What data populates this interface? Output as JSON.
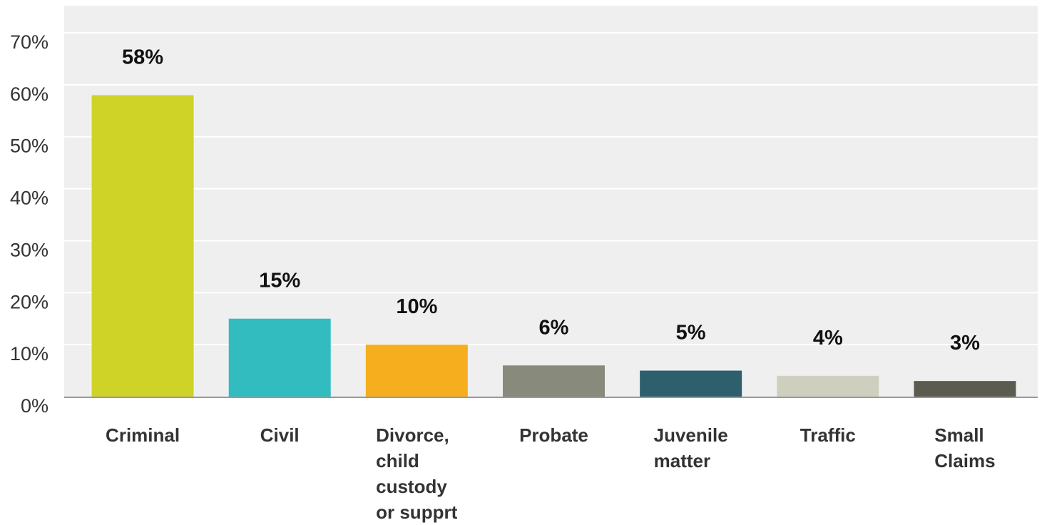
{
  "chart_data": {
    "type": "bar",
    "categories": [
      [
        "Criminal"
      ],
      [
        "Civil"
      ],
      [
        "Divorce,",
        "child",
        "custody",
        "or supprt"
      ],
      [
        "Probate"
      ],
      [
        "Juvenile",
        "matter"
      ],
      [
        "Traffic"
      ],
      [
        "Small",
        "Claims"
      ]
    ],
    "values": [
      58,
      15,
      10,
      6,
      5,
      4,
      3
    ],
    "data_labels": [
      "58%",
      "15%",
      "10%",
      "6%",
      "5%",
      "4%",
      "3%"
    ],
    "colors": [
      "#cfd327",
      "#33bcbf",
      "#f6ae1f",
      "#888a7b",
      "#2e5f6d",
      "#cfcfbf",
      "#5b5b4f"
    ],
    "ylim": [
      0,
      70
    ],
    "yticks": [
      0,
      10,
      20,
      30,
      40,
      50,
      60,
      70
    ],
    "ytick_labels": [
      "0%",
      "10%",
      "20%",
      "30%",
      "40%",
      "50%",
      "60%",
      "70%"
    ],
    "grid": true,
    "plot_background": "#efefef",
    "gridline_color": "#ffffff"
  }
}
